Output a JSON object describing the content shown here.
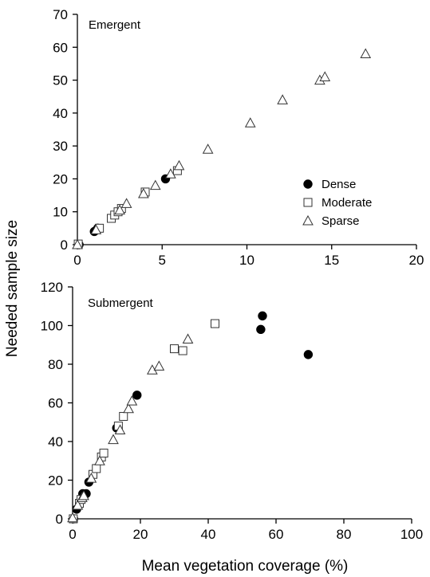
{
  "colors": {
    "axis": "#000000",
    "dense_fill": "#000000",
    "open_fill": "#ffffff",
    "marker_stroke": "#333333"
  },
  "figure": {
    "ylabel": "Needed sample size",
    "xlabel": "Mean vegetation coverage (%)"
  },
  "chart_data": [
    {
      "type": "scatter",
      "title": "Emergent",
      "xlim": [
        0,
        20
      ],
      "ylim": [
        0,
        70
      ],
      "xticks": [
        0,
        5,
        10,
        15,
        20
      ],
      "yticks": [
        0,
        10,
        20,
        30,
        40,
        50,
        60,
        70
      ],
      "legend": {
        "position": "right",
        "entries": [
          {
            "name": "Dense",
            "marker": "circle-filled"
          },
          {
            "name": "Moderate",
            "marker": "square-open"
          },
          {
            "name": "Sparse",
            "marker": "triangle-open"
          }
        ]
      },
      "series": [
        {
          "name": "Dense",
          "marker": "circle-filled",
          "points": [
            [
              0.1,
              0
            ],
            [
              1.0,
              4
            ],
            [
              1.2,
              5
            ],
            [
              5.2,
              20
            ]
          ]
        },
        {
          "name": "Moderate",
          "marker": "square-open",
          "points": [
            [
              0.05,
              0.2
            ],
            [
              1.3,
              5
            ],
            [
              2.0,
              8
            ],
            [
              2.2,
              9
            ],
            [
              2.4,
              10
            ],
            [
              2.6,
              11
            ],
            [
              4.0,
              16
            ],
            [
              5.9,
              22.5
            ]
          ]
        },
        {
          "name": "Sparse",
          "marker": "triangle-open",
          "points": [
            [
              0,
              0
            ],
            [
              1.1,
              4.5
            ],
            [
              2.5,
              10.5
            ],
            [
              2.9,
              12.5
            ],
            [
              3.9,
              15.5
            ],
            [
              4.6,
              18
            ],
            [
              5.5,
              21.5
            ],
            [
              6.0,
              24
            ],
            [
              7.7,
              29
            ],
            [
              10.2,
              37
            ],
            [
              12.1,
              44
            ],
            [
              14.3,
              50
            ],
            [
              14.6,
              51
            ],
            [
              17.0,
              58
            ]
          ]
        }
      ]
    },
    {
      "type": "scatter",
      "title": "Submergent",
      "xlim": [
        0,
        100
      ],
      "ylim": [
        0,
        120
      ],
      "xticks": [
        0,
        20,
        40,
        60,
        80,
        100
      ],
      "yticks": [
        0,
        20,
        40,
        60,
        80,
        100,
        120
      ],
      "series": [
        {
          "name": "Dense",
          "marker": "circle-filled",
          "points": [
            [
              0.3,
              0
            ],
            [
              1.2,
              5
            ],
            [
              3.0,
              13
            ],
            [
              4.0,
              13
            ],
            [
              4.8,
              19
            ],
            [
              13.0,
              47
            ],
            [
              19.0,
              64
            ],
            [
              55.5,
              98
            ],
            [
              56.0,
              105
            ],
            [
              69.5,
              85
            ]
          ]
        },
        {
          "name": "Moderate",
          "marker": "square-open",
          "points": [
            [
              0.2,
              0
            ],
            [
              2.0,
              8
            ],
            [
              2.5,
              10
            ],
            [
              6.0,
              23
            ],
            [
              7.0,
              26
            ],
            [
              8.5,
              32
            ],
            [
              9.2,
              34
            ],
            [
              13.5,
              48
            ],
            [
              15.0,
              53
            ],
            [
              30.0,
              88
            ],
            [
              32.5,
              87
            ],
            [
              42.0,
              101
            ]
          ]
        },
        {
          "name": "Sparse",
          "marker": "triangle-open",
          "points": [
            [
              0.0,
              0.5
            ],
            [
              1.5,
              7
            ],
            [
              2.8,
              11
            ],
            [
              3.3,
              12
            ],
            [
              5.5,
              21
            ],
            [
              8.0,
              30
            ],
            [
              12.0,
              41
            ],
            [
              14.0,
              46
            ],
            [
              16.5,
              57
            ],
            [
              17.5,
              61
            ],
            [
              23.5,
              77
            ],
            [
              25.5,
              79
            ],
            [
              34.0,
              93
            ]
          ]
        }
      ]
    }
  ]
}
